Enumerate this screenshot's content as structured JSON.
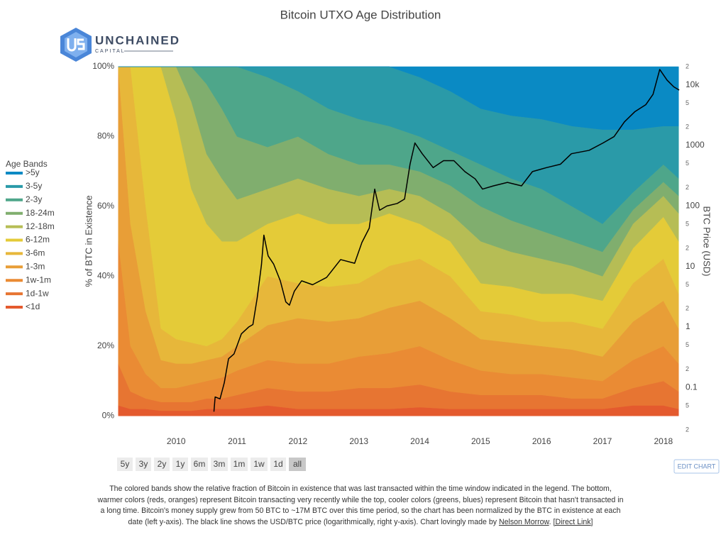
{
  "chart_data": {
    "type": "stacked_area",
    "title": "Bitcoin UTXO Age Distribution",
    "ylabel": "% of BTC in Existence",
    "y2label": "BTC Price (USD)",
    "legend_title": "Age Bands",
    "legend_position": "left",
    "grid": false,
    "y2_log": true,
    "xlim": [
      2009.03,
      2018.27
    ],
    "xticks": [
      2010,
      2011,
      2012,
      2013,
      2014,
      2015,
      2016,
      2017,
      2018
    ],
    "ylim": [
      -4,
      100
    ],
    "yticks": [
      {
        "value": 0,
        "label": "0%"
      },
      {
        "value": 20,
        "label": "20%"
      },
      {
        "value": 40,
        "label": "40%"
      },
      {
        "value": 60,
        "label": "60%"
      },
      {
        "value": 80,
        "label": "80%"
      },
      {
        "value": 100,
        "label": "100%"
      }
    ],
    "y2lim": [
      0.02,
      20000
    ],
    "y2ticks": [
      {
        "value": 0.02,
        "label": "2"
      },
      {
        "value": 0.05,
        "label": "5"
      },
      0.1,
      {
        "value": 0.2,
        "label": "2"
      },
      {
        "value": 0.5,
        "label": "5"
      },
      1,
      {
        "value": 2,
        "label": "2"
      },
      {
        "value": 5,
        "label": "5"
      },
      10,
      {
        "value": 20,
        "label": "2"
      },
      {
        "value": 50,
        "label": "5"
      },
      100,
      {
        "value": 200,
        "label": "2"
      },
      {
        "value": 500,
        "label": "5"
      },
      1000,
      {
        "value": 2000,
        "label": "2"
      },
      {
        "value": 5000,
        "label": "5"
      },
      {
        "value": 10000,
        "label": "10k"
      },
      {
        "value": 20000,
        "label": "2"
      }
    ],
    "x": [
      2009.05,
      2009.25,
      2009.5,
      2009.75,
      2010,
      2010.25,
      2010.5,
      2010.75,
      2011,
      2011.5,
      2012,
      2012.5,
      2013,
      2013.5,
      2014,
      2014.5,
      2015,
      2015.5,
      2016,
      2016.5,
      2017,
      2017.5,
      2018,
      2018.25
    ],
    "series": [
      {
        "name": ">5y",
        "color": "#0a8ac4",
        "values": [
          0,
          0,
          0,
          0,
          0,
          0,
          0,
          0,
          0,
          0,
          0,
          0,
          0,
          0,
          3,
          7,
          12,
          14,
          15,
          17,
          18,
          18,
          17,
          17
        ]
      },
      {
        "name": "3-5y",
        "color": "#2a9aa8",
        "values": [
          0,
          0,
          0,
          0,
          0,
          0,
          0,
          0,
          0,
          3,
          7,
          12,
          15,
          17,
          17,
          17,
          16,
          18,
          20,
          23,
          27,
          18,
          11,
          15
        ]
      },
      {
        "name": "2-3y",
        "color": "#4ea68a",
        "values": [
          0,
          0,
          0,
          0,
          0,
          0,
          5,
          12,
          20,
          20,
          13,
          13,
          13,
          11,
          10,
          10,
          12,
          12,
          12,
          10,
          8,
          5,
          5,
          5
        ]
      },
      {
        "name": "18-24m",
        "color": "#80ae6e",
        "values": [
          0,
          0,
          0,
          0,
          0,
          10,
          20,
          20,
          18,
          12,
          12,
          10,
          9,
          7,
          7,
          8,
          10,
          9,
          8,
          7,
          7,
          4,
          4,
          5
        ]
      },
      {
        "name": "12-18m",
        "color": "#b6bd55",
        "values": [
          0,
          0,
          0,
          0,
          15,
          25,
          20,
          18,
          12,
          10,
          10,
          10,
          8,
          7,
          8,
          8,
          12,
          10,
          10,
          8,
          7,
          7,
          6,
          8
        ]
      },
      {
        "name": "6-12m",
        "color": "#e4cb38",
        "values": [
          0,
          0,
          40,
          75,
          63,
          44,
          35,
          28,
          23,
          15,
          20,
          18,
          17,
          15,
          10,
          10,
          8,
          8,
          8,
          8,
          8,
          10,
          12,
          15
        ]
      },
      {
        "name": "3-6m",
        "color": "#e7b73a",
        "values": [
          0,
          45,
          30,
          9,
          7,
          6,
          4,
          5,
          7,
          14,
          10,
          10,
          10,
          12,
          12,
          12,
          8,
          8,
          7,
          8,
          8,
          11,
          12,
          10
        ]
      },
      {
        "name": "1-3m",
        "color": "#e89e37",
        "values": [
          50,
          35,
          18,
          8,
          7,
          6,
          6,
          6,
          7,
          10,
          13,
          12,
          11,
          13,
          13,
          12,
          9,
          9,
          8,
          8,
          7,
          11,
          13,
          10
        ]
      },
      {
        "name": "1w-1m",
        "color": "#ea8b34",
        "values": [
          35,
          13,
          7,
          4,
          4,
          5,
          5,
          6,
          7,
          8,
          8,
          8,
          9,
          10,
          11,
          9,
          7,
          6,
          6,
          6,
          5,
          8,
          10,
          8
        ]
      },
      {
        "name": "1d-1w",
        "color": "#e77532",
        "values": [
          12,
          5,
          3,
          2.5,
          2.5,
          2.5,
          3,
          3,
          4,
          5,
          5,
          5,
          6,
          6,
          6.5,
          5,
          4,
          4,
          4,
          3,
          3,
          5,
          7,
          5
        ]
      },
      {
        "name": "<1d",
        "color": "#e45a2e",
        "values": [
          3,
          2,
          2,
          1.5,
          1.5,
          1.5,
          2,
          2,
          2,
          3,
          2,
          2,
          2,
          2,
          2.5,
          2,
          2,
          2,
          2,
          2,
          2,
          3,
          3,
          2
        ]
      }
    ],
    "lines": [
      {
        "axis": "y2",
        "color": "#000000",
        "x": [
          2010.62,
          2010.64,
          2010.72,
          2010.79,
          2010.86,
          2010.95,
          2011.07,
          2011.19,
          2011.26,
          2011.33,
          2011.4,
          2011.44,
          2011.51,
          2011.6,
          2011.71,
          2011.8,
          2011.86,
          2011.94,
          2012.06,
          2012.24,
          2012.47,
          2012.7,
          2012.93,
          2013.05,
          2013.17,
          2013.26,
          2013.34,
          2013.46,
          2013.63,
          2013.75,
          2013.84,
          2013.92,
          2014.04,
          2014.22,
          2014.39,
          2014.56,
          2014.74,
          2014.91,
          2015.03,
          2015.21,
          2015.44,
          2015.67,
          2015.85,
          2016.08,
          2016.31,
          2016.49,
          2016.78,
          2017.01,
          2017.19,
          2017.36,
          2017.53,
          2017.71,
          2017.83,
          2017.94,
          2018.06,
          2018.17,
          2018.26
        ],
        "values": [
          0.04,
          0.07,
          0.065,
          0.12,
          0.3,
          0.36,
          0.77,
          1,
          1.1,
          3,
          10.6,
          33,
          15,
          11,
          5.8,
          2.6,
          2.3,
          3.9,
          5.8,
          5,
          6.6,
          13,
          11.3,
          25,
          43,
          190,
          85,
          100,
          110,
          130,
          490,
          1100,
          730,
          430,
          560,
          560,
          370,
          280,
          190,
          215,
          245,
          215,
          370,
          430,
          490,
          730,
          830,
          1100,
          1400,
          2450,
          3600,
          4700,
          7000,
          18000,
          12000,
          9300,
          8200
        ]
      }
    ]
  },
  "logo": {
    "name": "UNCHAINED",
    "sub": "CAPITAL"
  },
  "controls": {
    "range_buttons": [
      "5y",
      "3y",
      "2y",
      "1y",
      "6m",
      "3m",
      "1m",
      "1w",
      "1d",
      "all"
    ],
    "edit_button": "EDIT CHART"
  },
  "caption": {
    "text": "The colored bands show the relative fraction of Bitcoin in existence that was last transacted within the time window indicated in the legend. The bottom, warmer colors (reds, oranges) represent Bitcoin transacting very recently while the top, cooler colors (greens, blues) represent Bitcoin that hasn't transacted in a long time. Bitcoin's money supply grew from 50 BTC to ~17M BTC over this time period, so the chart has been normalized by the BTC in existence at each date (left y-axis). The black line shows the USD/BTC price (logarithmically, right y-axis). Chart lovingly made by",
    "author": "Nelson Morrow",
    "end": ".",
    "link": "[Direct Link]"
  }
}
